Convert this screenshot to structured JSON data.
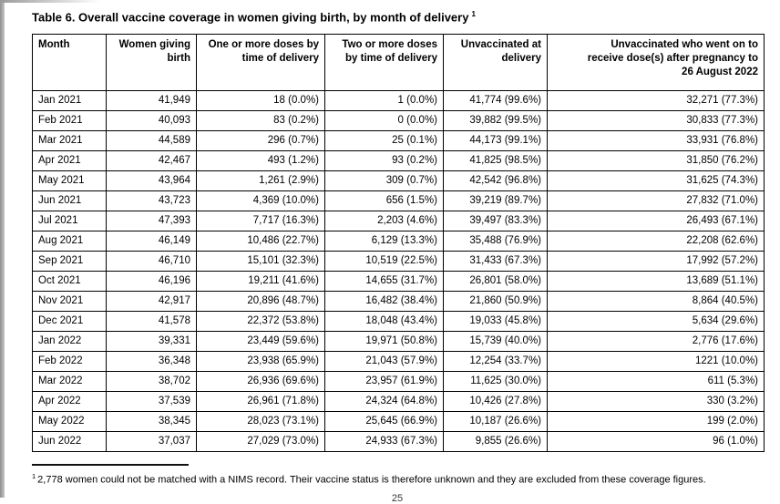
{
  "page": {
    "title": "Table 6. Overall vaccine coverage in women giving birth, by month of delivery",
    "title_superscript": "1",
    "footnote_superscript": "1",
    "footnote": "2,778 women could not be matched with a NIMS record. Their vaccine status is therefore unknown and they are excluded from these coverage figures.",
    "page_number": "25"
  },
  "colors": {
    "table_border": "#000000",
    "text": "#000000",
    "page_edge_gray": "#9a9a9a"
  },
  "table": {
    "columns": [
      "Month",
      "Women giving\nbirth",
      "One or more doses by\ntime of delivery",
      "Two or more doses\nby time of delivery",
      "Unvaccinated at\ndelivery",
      "Unvaccinated who went on to\nreceive dose(s) after pregnancy to\n26 August 2022"
    ],
    "rows": [
      [
        "Jan 2021",
        "41,949",
        "18 (0.0%)",
        "1 (0.0%)",
        "41,774 (99.6%)",
        "32,271 (77.3%)"
      ],
      [
        "Feb 2021",
        "40,093",
        "83 (0.2%)",
        "0 (0.0%)",
        "39,882 (99.5%)",
        "30,833 (77.3%)"
      ],
      [
        "Mar 2021",
        "44,589",
        "296 (0.7%)",
        "25 (0.1%)",
        "44,173 (99.1%)",
        "33,931 (76.8%)"
      ],
      [
        "Apr 2021",
        "42,467",
        "493 (1.2%)",
        "93 (0.2%)",
        "41,825 (98.5%)",
        "31,850 (76.2%)"
      ],
      [
        "May 2021",
        "43,964",
        "1,261 (2.9%)",
        "309 (0.7%)",
        "42,542 (96.8%)",
        "31,625 (74.3%)"
      ],
      [
        "Jun 2021",
        "43,723",
        "4,369 (10.0%)",
        "656 (1.5%)",
        "39,219 (89.7%)",
        "27,832 (71.0%)"
      ],
      [
        "Jul 2021",
        "47,393",
        "7,717 (16.3%)",
        "2,203 (4.6%)",
        "39,497 (83.3%)",
        "26,493 (67.1%)"
      ],
      [
        "Aug 2021",
        "46,149",
        "10,486 (22.7%)",
        "6,129 (13.3%)",
        "35,488 (76.9%)",
        "22,208 (62.6%)"
      ],
      [
        "Sep 2021",
        "46,710",
        "15,101 (32.3%)",
        "10,519 (22.5%)",
        "31,433 (67.3%)",
        "17,992 (57.2%)"
      ],
      [
        "Oct 2021",
        "46,196",
        "19,211 (41.6%)",
        "14,655 (31.7%)",
        "26,801 (58.0%)",
        "13,689 (51.1%)"
      ],
      [
        "Nov 2021",
        "42,917",
        "20,896 (48.7%)",
        "16,482 (38.4%)",
        "21,860 (50.9%)",
        "8,864 (40.5%)"
      ],
      [
        "Dec 2021",
        "41,578",
        "22,372 (53.8%)",
        "18,048 (43.4%)",
        "19,033 (45.8%)",
        "5,634 (29.6%)"
      ],
      [
        "Jan 2022",
        "39,331",
        "23,449 (59.6%)",
        "19,971 (50.8%)",
        "15,739 (40.0%)",
        "2,776 (17.6%)"
      ],
      [
        "Feb 2022",
        "36,348",
        "23,938 (65.9%)",
        "21,043 (57.9%)",
        "12,254 (33.7%)",
        "1221 (10.0%)"
      ],
      [
        "Mar 2022",
        "38,702",
        "26,936 (69.6%)",
        "23,957 (61.9%)",
        "11,625 (30.0%)",
        "611 (5.3%)"
      ],
      [
        "Apr 2022",
        "37,539",
        "26,961 (71.8%)",
        "24,324 (64.8%)",
        "10,426 (27.8%)",
        "330 (3.2%)"
      ],
      [
        "May 2022",
        "38,345",
        "28,023 (73.1%)",
        "25,645 (66.9%)",
        "10,187 (26.6%)",
        "199 (2.0%)"
      ],
      [
        "Jun 2022",
        "37,037",
        "27,029 (73.0%)",
        "24,933 (67.3%)",
        "9,855 (26.6%)",
        "96 (1.0%)"
      ]
    ]
  }
}
